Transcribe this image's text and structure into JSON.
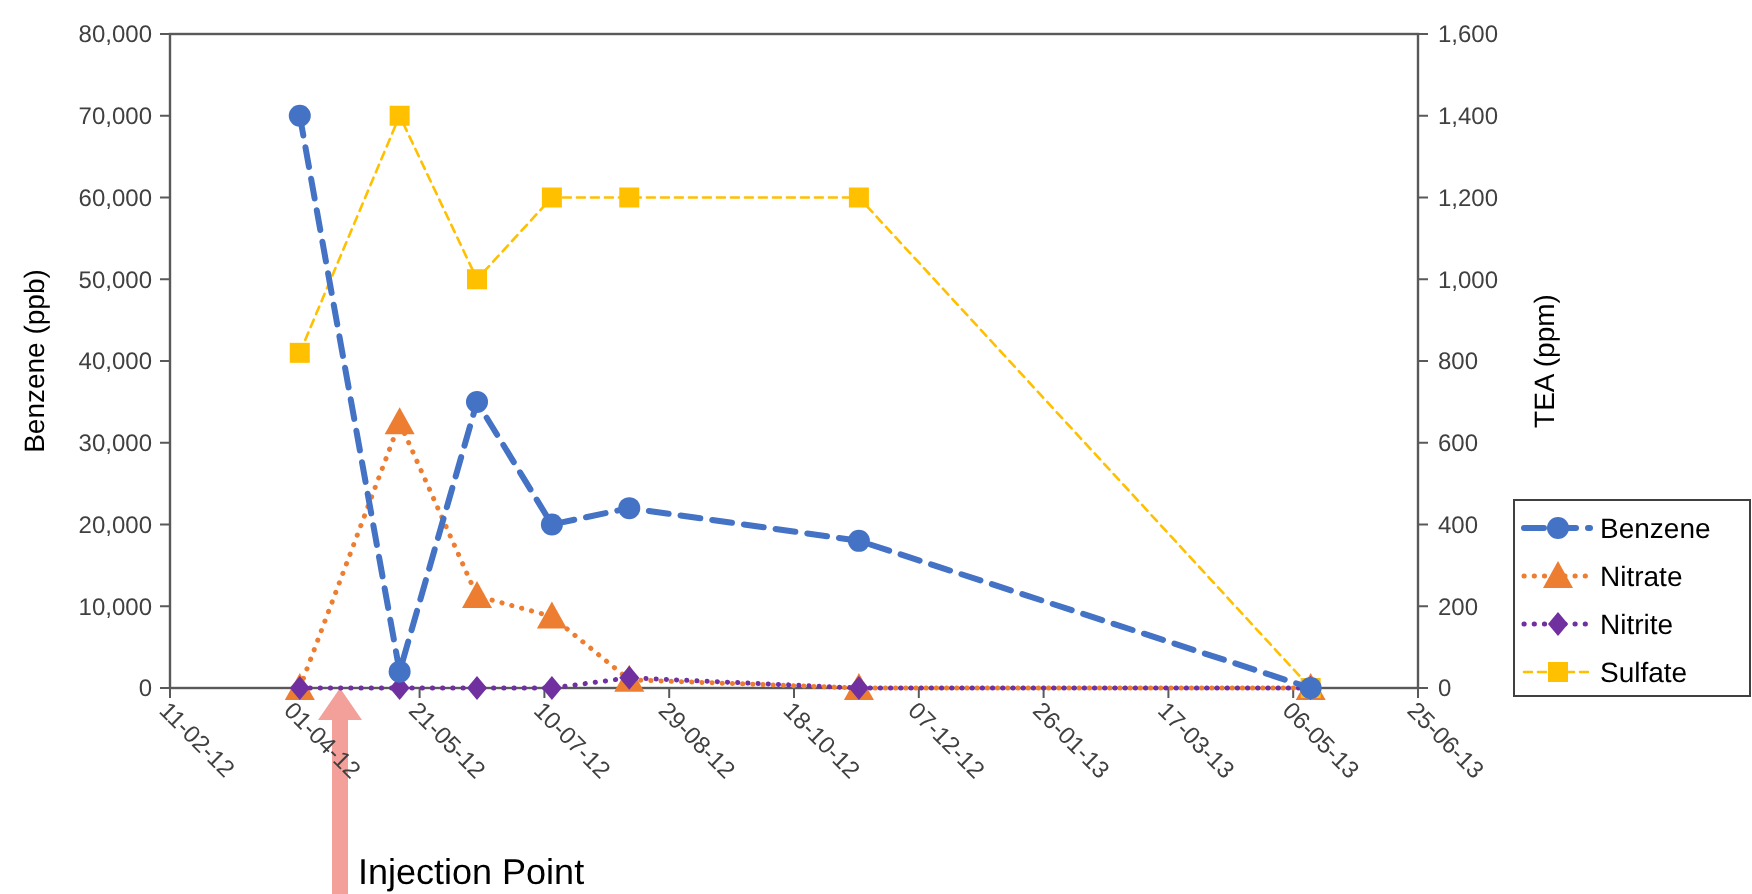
{
  "chart_data": {
    "type": "line",
    "xlabel": null,
    "ylabel": "Benzene (ppb)",
    "y2label": "TEA (ppm)",
    "x": [
      "2012-04-03",
      "2012-05-13",
      "2012-06-13",
      "2012-07-13",
      "2012-08-13",
      "2012-11-13",
      "2013-05-13"
    ],
    "xlim": [
      "2012-02-11",
      "2013-06-25"
    ],
    "xticks": [
      {
        "value": "2012-02-11",
        "label": "11-02-12"
      },
      {
        "value": "2012-04-01",
        "label": "01-04-12"
      },
      {
        "value": "2012-05-21",
        "label": "21-05-12"
      },
      {
        "value": "2012-07-10",
        "label": "10-07-12"
      },
      {
        "value": "2012-08-29",
        "label": "29-08-12"
      },
      {
        "value": "2012-10-18",
        "label": "18-10-12"
      },
      {
        "value": "2012-12-07",
        "label": "07-12-12"
      },
      {
        "value": "2013-01-26",
        "label": "26-01-13"
      },
      {
        "value": "2013-03-17",
        "label": "17-03-13"
      },
      {
        "value": "2013-05-06",
        "label": "06-05-13"
      },
      {
        "value": "2013-06-25",
        "label": "25-06-13"
      }
    ],
    "ylim": [
      0,
      80000
    ],
    "yticks": [
      {
        "value": 0,
        "label": "0"
      },
      {
        "value": 10000,
        "label": "10,000"
      },
      {
        "value": 20000,
        "label": "20,000"
      },
      {
        "value": 30000,
        "label": "30,000"
      },
      {
        "value": 40000,
        "label": "40,000"
      },
      {
        "value": 50000,
        "label": "50,000"
      },
      {
        "value": 60000,
        "label": "60,000"
      },
      {
        "value": 70000,
        "label": "70,000"
      },
      {
        "value": 80000,
        "label": "80,000"
      }
    ],
    "y2lim": [
      0,
      1600
    ],
    "y2ticks": [
      {
        "value": 0,
        "label": "0"
      },
      {
        "value": 200,
        "label": "200"
      },
      {
        "value": 400,
        "label": "400"
      },
      {
        "value": 600,
        "label": "600"
      },
      {
        "value": 800,
        "label": "800"
      },
      {
        "value": 1000,
        "label": "1,000"
      },
      {
        "value": 1200,
        "label": "1,200"
      },
      {
        "value": 1400,
        "label": "1,400"
      },
      {
        "value": 1600,
        "label": "1,600"
      }
    ],
    "grid": false,
    "legend": "right",
    "series": [
      {
        "name": "Benzene",
        "color": "#4472c4",
        "values": [
          70000,
          2000,
          35000,
          20000,
          22000,
          18000,
          0
        ],
        "marker": "circle",
        "line_style": "dashed"
      },
      {
        "name": "Nitrate",
        "color": "#ed7d31",
        "axis": "y2",
        "values": [
          0,
          650,
          225,
          175,
          20,
          0,
          0
        ],
        "marker": "triangle",
        "line_style": "dotted"
      },
      {
        "name": "Nitrite",
        "color": "#7030a0",
        "axis": "y2",
        "values": [
          0,
          0,
          0,
          0,
          25,
          0,
          0
        ],
        "marker": "diamond",
        "line_style": "dotted"
      },
      {
        "name": "Sulfate",
        "color": "#ffc000",
        "axis": "y2",
        "values": [
          820,
          1400,
          1000,
          1200,
          1200,
          1200,
          0
        ],
        "marker": "square",
        "line_style": "dashed"
      }
    ],
    "annotations": [
      "Injection Point"
    ]
  }
}
